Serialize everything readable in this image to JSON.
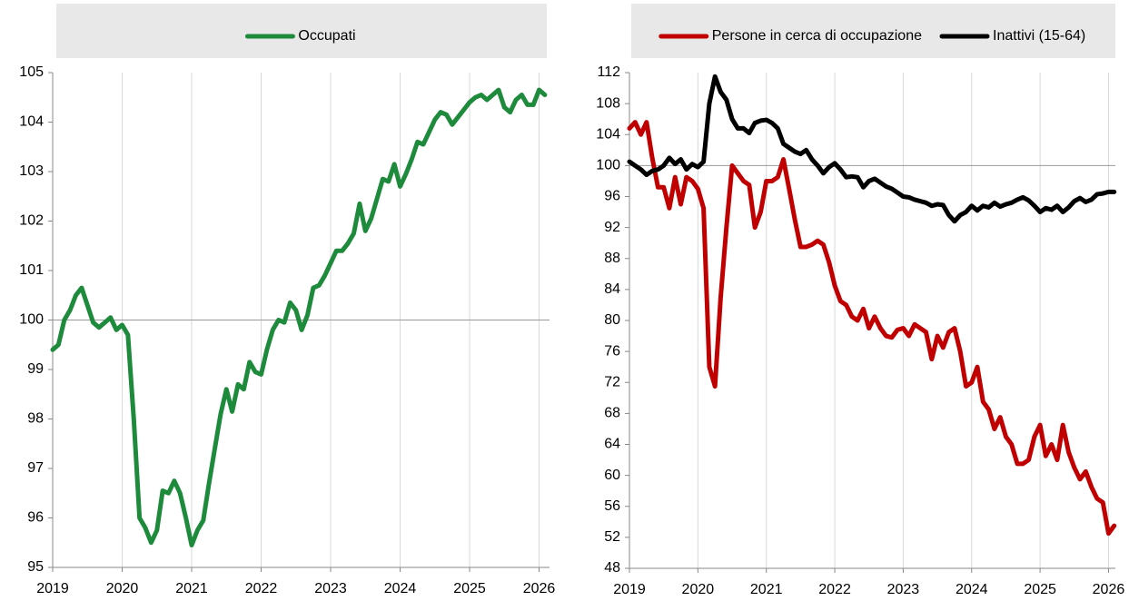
{
  "chart_data": [
    {
      "type": "line",
      "x": [
        2019,
        2019.083,
        2019.167,
        2019.25,
        2019.333,
        2019.417,
        2019.5,
        2019.583,
        2019.667,
        2019.75,
        2019.833,
        2019.917,
        2020,
        2020.083,
        2020.167,
        2020.25,
        2020.333,
        2020.417,
        2020.5,
        2020.583,
        2020.667,
        2020.75,
        2020.833,
        2020.917,
        2021,
        2021.083,
        2021.167,
        2021.25,
        2021.333,
        2021.417,
        2021.5,
        2021.583,
        2021.667,
        2021.75,
        2021.833,
        2021.917,
        2022,
        2022.083,
        2022.167,
        2022.25,
        2022.333,
        2022.417,
        2022.5,
        2022.583,
        2022.667,
        2022.75,
        2022.833,
        2022.917,
        2023,
        2023.083,
        2023.167,
        2023.25,
        2023.333,
        2023.417,
        2023.5,
        2023.583,
        2023.667,
        2023.75,
        2023.833,
        2023.917,
        2024,
        2024.083,
        2024.167,
        2024.25,
        2024.333,
        2024.417,
        2024.5,
        2024.583,
        2024.667,
        2024.75,
        2024.833,
        2024.917,
        2025,
        2025.083,
        2025.167,
        2025.25,
        2025.333,
        2025.417,
        2025.5,
        2025.583,
        2025.667,
        2025.75,
        2025.833,
        2025.917,
        2026,
        2026.083
      ],
      "series": [
        {
          "name": "Occupati",
          "color": "#1e8a3c",
          "values": [
            99.4,
            99.5,
            100.0,
            100.2,
            100.5,
            100.65,
            100.3,
            99.95,
            99.85,
            99.95,
            100.05,
            99.8,
            99.9,
            99.7,
            98.0,
            96.0,
            95.8,
            95.5,
            95.75,
            96.55,
            96.5,
            96.75,
            96.5,
            96.0,
            95.45,
            95.75,
            95.95,
            96.7,
            97.4,
            98.1,
            98.6,
            98.15,
            98.7,
            98.6,
            99.15,
            98.95,
            98.9,
            99.4,
            99.8,
            100.0,
            99.95,
            100.35,
            100.2,
            99.8,
            100.1,
            100.65,
            100.7,
            100.9,
            101.15,
            101.4,
            101.4,
            101.55,
            101.75,
            102.35,
            101.8,
            102.05,
            102.45,
            102.85,
            102.8,
            103.15,
            102.7,
            102.95,
            103.25,
            103.6,
            103.55,
            103.8,
            104.05,
            104.2,
            104.15,
            103.95,
            104.1,
            104.25,
            104.4,
            104.5,
            104.55,
            104.45,
            104.55,
            104.65,
            104.3,
            104.2,
            104.45,
            104.55,
            104.35,
            104.35,
            104.65,
            104.55
          ]
        }
      ],
      "xlim": [
        2019,
        2026.15
      ],
      "xticks": [
        2019,
        2020,
        2021,
        2022,
        2023,
        2024,
        2025,
        2026
      ],
      "ylim": [
        95,
        105
      ],
      "yticks": [
        95,
        96,
        97,
        98,
        99,
        100,
        101,
        102,
        103,
        104,
        105
      ],
      "reference_line": 100,
      "grid": true
    },
    {
      "type": "line",
      "x": [
        2019,
        2019.083,
        2019.167,
        2019.25,
        2019.333,
        2019.417,
        2019.5,
        2019.583,
        2019.667,
        2019.75,
        2019.833,
        2019.917,
        2020,
        2020.083,
        2020.167,
        2020.25,
        2020.333,
        2020.417,
        2020.5,
        2020.583,
        2020.667,
        2020.75,
        2020.833,
        2020.917,
        2021,
        2021.083,
        2021.167,
        2021.25,
        2021.333,
        2021.417,
        2021.5,
        2021.583,
        2021.667,
        2021.75,
        2021.833,
        2021.917,
        2022,
        2022.083,
        2022.167,
        2022.25,
        2022.333,
        2022.417,
        2022.5,
        2022.583,
        2022.667,
        2022.75,
        2022.833,
        2022.917,
        2023,
        2023.083,
        2023.167,
        2023.25,
        2023.333,
        2023.417,
        2023.5,
        2023.583,
        2023.667,
        2023.75,
        2023.833,
        2023.917,
        2024,
        2024.083,
        2024.167,
        2024.25,
        2024.333,
        2024.417,
        2024.5,
        2024.583,
        2024.667,
        2024.75,
        2024.833,
        2024.917,
        2025,
        2025.083,
        2025.167,
        2025.25,
        2025.333,
        2025.417,
        2025.5,
        2025.583,
        2025.667,
        2025.75,
        2025.833,
        2025.917,
        2026,
        2026.083
      ],
      "series": [
        {
          "name": "Persone in cerca di occupazione",
          "color": "#c00000",
          "values": [
            104.8,
            105.6,
            104.0,
            105.6,
            101.0,
            97.2,
            97.2,
            94.5,
            98.5,
            95.0,
            98.5,
            98.0,
            97.0,
            94.5,
            74.0,
            71.5,
            83.0,
            92.0,
            100.0,
            99.0,
            98.0,
            97.5,
            92.0,
            94.0,
            98.0,
            98.0,
            98.5,
            100.8,
            97.0,
            93.0,
            89.5,
            89.5,
            89.8,
            90.3,
            89.8,
            87.5,
            84.5,
            82.5,
            82.0,
            80.5,
            80.0,
            81.5,
            79.0,
            80.5,
            79.0,
            78.0,
            77.8,
            78.8,
            79.0,
            78.0,
            79.5,
            79.0,
            78.5,
            75.0,
            78.0,
            76.5,
            78.5,
            79.0,
            76.0,
            71.5,
            72.0,
            74.0,
            69.5,
            68.5,
            66.0,
            67.5,
            65.0,
            64.0,
            61.5,
            61.5,
            62.0,
            65.0,
            66.5,
            62.5,
            64.0,
            62.0,
            66.5,
            63.0,
            61.0,
            59.5,
            60.5,
            58.5,
            57.0,
            56.5,
            52.5,
            53.5
          ]
        },
        {
          "name": "Inattivi (15-64)",
          "color": "#000000",
          "values": [
            100.5,
            100.0,
            99.5,
            98.8,
            99.3,
            99.5,
            100.0,
            101.0,
            100.2,
            100.8,
            99.5,
            100.2,
            99.8,
            100.5,
            108.0,
            111.5,
            109.5,
            108.5,
            106.0,
            104.8,
            104.8,
            104.2,
            105.5,
            105.8,
            105.9,
            105.5,
            104.8,
            102.8,
            102.3,
            101.8,
            101.5,
            102.0,
            100.8,
            100.0,
            99.0,
            99.8,
            100.3,
            99.5,
            98.5,
            98.6,
            98.5,
            97.2,
            98.0,
            98.3,
            97.8,
            97.3,
            97.0,
            96.5,
            96.0,
            95.9,
            95.6,
            95.4,
            95.2,
            94.8,
            95.0,
            94.9,
            93.6,
            92.8,
            93.6,
            94.0,
            94.8,
            94.2,
            94.8,
            94.6,
            95.2,
            94.7,
            95.0,
            95.2,
            95.6,
            95.9,
            95.5,
            94.8,
            94.0,
            94.5,
            94.3,
            94.8,
            94.0,
            94.6,
            95.4,
            95.8,
            95.3,
            95.6,
            96.3,
            96.4,
            96.6,
            96.6
          ]
        }
      ],
      "xlim": [
        2019,
        2026.1
      ],
      "xticks": [
        2019,
        2020,
        2021,
        2022,
        2023,
        2024,
        2025,
        2026
      ],
      "ylim": [
        48,
        112
      ],
      "yticks": [
        48,
        52,
        56,
        60,
        64,
        68,
        72,
        76,
        80,
        84,
        88,
        92,
        96,
        100,
        104,
        108,
        112
      ],
      "reference_line": 100,
      "grid": true
    }
  ]
}
